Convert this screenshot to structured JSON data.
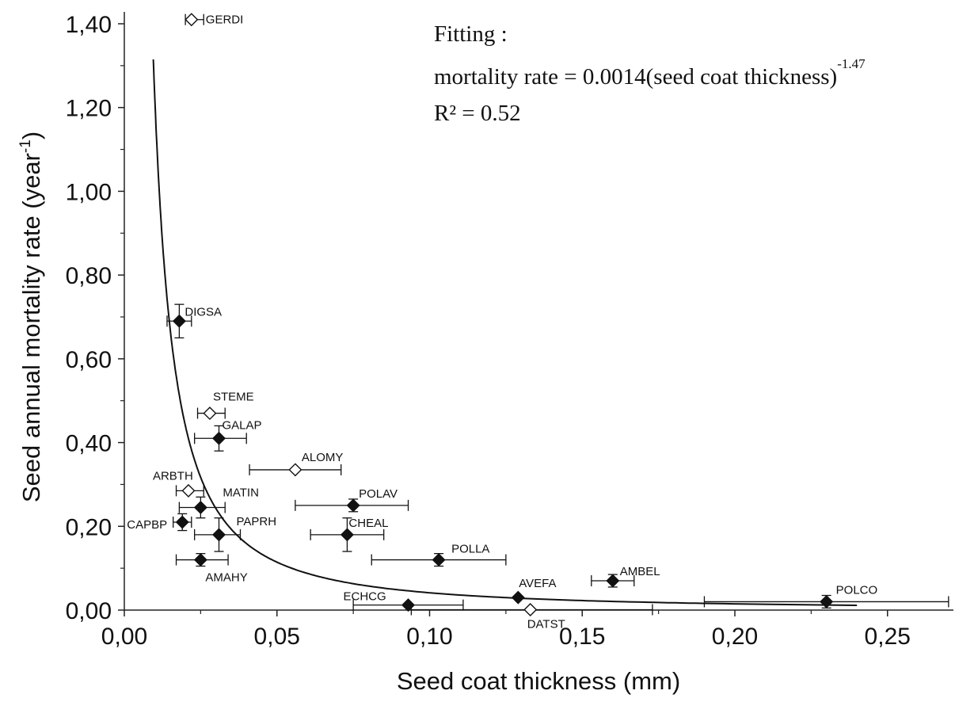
{
  "chart_data": {
    "type": "scatter",
    "xlabel": "Seed coat thickness (mm)",
    "ylabel_main": "Seed annual mortality rate (year",
    "ylabel_sup": "-1",
    "ylabel_close": ")",
    "xlim": [
      0,
      0.28
    ],
    "ylim": [
      0,
      1.45
    ],
    "x_ticks": [
      {
        "value": 0.0,
        "label": "0,00"
      },
      {
        "value": 0.05,
        "label": "0,05"
      },
      {
        "value": 0.1,
        "label": "0,10"
      },
      {
        "value": 0.15,
        "label": "0,15"
      },
      {
        "value": 0.2,
        "label": "0,20"
      },
      {
        "value": 0.25,
        "label": "0,25"
      }
    ],
    "y_ticks": [
      {
        "value": 0.0,
        "label": "0,00"
      },
      {
        "value": 0.2,
        "label": "0,20"
      },
      {
        "value": 0.4,
        "label": "0,40"
      },
      {
        "value": 0.6,
        "label": "0,60"
      },
      {
        "value": 0.8,
        "label": "0,80"
      },
      {
        "value": 1.0,
        "label": "1,00"
      },
      {
        "value": 1.2,
        "label": "1,20"
      },
      {
        "value": 1.4,
        "label": "1,40"
      }
    ],
    "fit": {
      "line1": "Fitting :",
      "line2_main": "mortality rate = 0.0014(seed coat thickness)",
      "line2_sup": "-1.47",
      "line3": "R² = 0.52",
      "coef": 0.0014,
      "exponent": -1.47,
      "x_range": [
        0.0095,
        0.24
      ]
    },
    "points": [
      {
        "label": "GERDI",
        "x": 0.022,
        "y": 1.41,
        "filled": false,
        "xerr": [
          0.02,
          0.026
        ],
        "yerr": null
      },
      {
        "label": "DIGSA",
        "x": 0.018,
        "y": 0.69,
        "filled": true,
        "xerr": [
          0.014,
          0.022
        ],
        "yerr": [
          0.65,
          0.73
        ]
      },
      {
        "label": "STEME",
        "x": 0.028,
        "y": 0.47,
        "filled": false,
        "xerr": [
          0.024,
          0.033
        ],
        "yerr": null
      },
      {
        "label": "GALAP",
        "x": 0.031,
        "y": 0.41,
        "filled": true,
        "xerr": [
          0.023,
          0.04
        ],
        "yerr": [
          0.38,
          0.44
        ]
      },
      {
        "label": "ALOMY",
        "x": 0.056,
        "y": 0.335,
        "filled": false,
        "xerr": [
          0.041,
          0.071
        ],
        "yerr": null
      },
      {
        "label": "ARBTH",
        "x": 0.021,
        "y": 0.285,
        "filled": false,
        "xerr": [
          0.017,
          0.026
        ],
        "yerr": null
      },
      {
        "label": "MATIN",
        "x": 0.025,
        "y": 0.245,
        "filled": true,
        "xerr": [
          0.018,
          0.033
        ],
        "yerr": [
          0.22,
          0.27
        ]
      },
      {
        "label": "POLAV",
        "x": 0.075,
        "y": 0.25,
        "filled": true,
        "xerr": [
          0.056,
          0.093
        ],
        "yerr": [
          0.235,
          0.265
        ]
      },
      {
        "label": "CAPBP",
        "x": 0.019,
        "y": 0.21,
        "filled": true,
        "xerr": [
          0.016,
          0.022
        ],
        "yerr": [
          0.19,
          0.23
        ]
      },
      {
        "label": "PAPRH",
        "x": 0.031,
        "y": 0.18,
        "filled": true,
        "xerr": [
          0.023,
          0.038
        ],
        "yerr": [
          0.14,
          0.22
        ]
      },
      {
        "label": "CHEAL",
        "x": 0.073,
        "y": 0.18,
        "filled": true,
        "xerr": [
          0.061,
          0.085
        ],
        "yerr": [
          0.14,
          0.22
        ]
      },
      {
        "label": "AMAHY",
        "x": 0.025,
        "y": 0.12,
        "filled": true,
        "xerr": [
          0.017,
          0.034
        ],
        "yerr": [
          0.105,
          0.135
        ]
      },
      {
        "label": "POLLA",
        "x": 0.103,
        "y": 0.12,
        "filled": true,
        "xerr": [
          0.081,
          0.125
        ],
        "yerr": [
          0.105,
          0.135
        ]
      },
      {
        "label": "AMBEL",
        "x": 0.16,
        "y": 0.07,
        "filled": true,
        "xerr": [
          0.153,
          0.167
        ],
        "yerr": [
          0.055,
          0.085
        ]
      },
      {
        "label": "AVEFA",
        "x": 0.129,
        "y": 0.03,
        "filled": true,
        "xerr": null,
        "yerr": null
      },
      {
        "label": "ECHCG",
        "x": 0.093,
        "y": 0.012,
        "filled": true,
        "xerr": [
          0.075,
          0.111
        ],
        "yerr": null
      },
      {
        "label": "DATST",
        "x": 0.133,
        "y": 0.001,
        "filled": false,
        "xerr": [
          0.094,
          0.173
        ],
        "yerr": null
      },
      {
        "label": "POLCO",
        "x": 0.23,
        "y": 0.02,
        "filled": true,
        "xerr": [
          0.19,
          0.27
        ],
        "yerr": [
          0.005,
          0.035
        ]
      }
    ]
  }
}
